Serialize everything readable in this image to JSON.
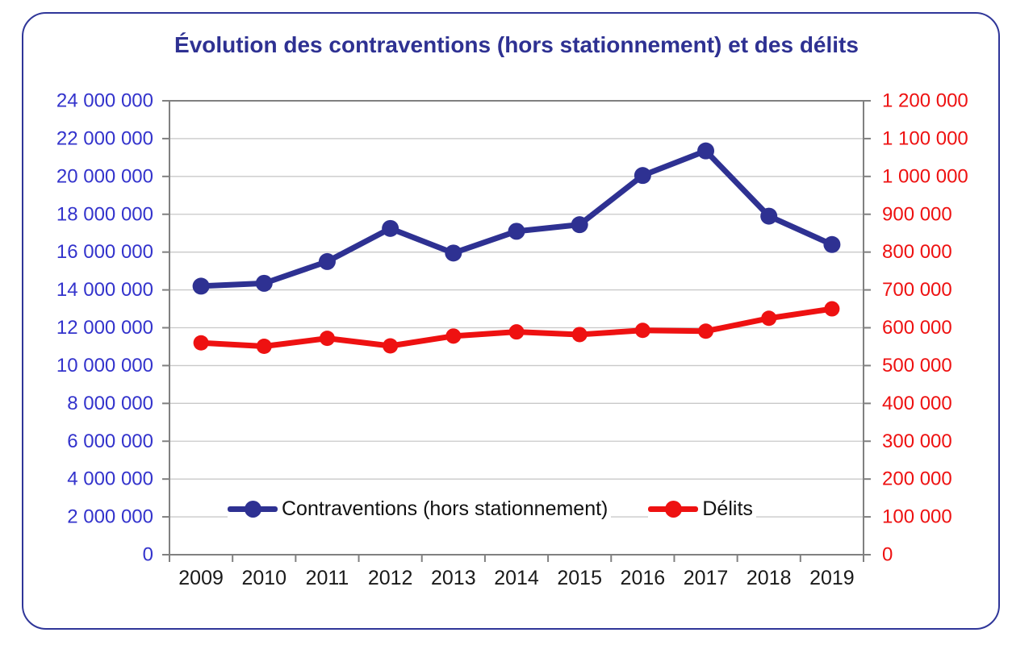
{
  "title": {
    "text": "Évolution des contraventions (hors stationnement) et des délits",
    "color": "#2E3192"
  },
  "colors": {
    "frame_border": "#2F3699",
    "plot_border": "#808080",
    "gridline": "#C9C9C9",
    "contraventions_blue": "#2E3192",
    "delits_red": "#EE1111",
    "left_axis_labels": "#3333CC",
    "right_axis_labels": "#EE1111",
    "x_axis_labels": "#1A1A1A"
  },
  "legend": {
    "items": [
      {
        "label": "Contraventions (hors stationnement)",
        "color": "#2E3192",
        "marker": "line-dot"
      },
      {
        "label": "Délits",
        "color": "#EE1111",
        "marker": "line-dot"
      }
    ],
    "position": "bottom-inside"
  },
  "chart_data": {
    "type": "line",
    "title": "Évolution des contraventions (hors stationnement) et des délits",
    "categories": [
      "2009",
      "2010",
      "2011",
      "2012",
      "2013",
      "2014",
      "2015",
      "2016",
      "2017",
      "2018",
      "2019"
    ],
    "series": [
      {
        "name": "Contraventions (hors stationnement)",
        "axis": "left",
        "color": "#2E3192",
        "values": [
          14200000,
          14350000,
          15500000,
          17250000,
          15950000,
          17100000,
          17450000,
          20050000,
          21350000,
          17900000,
          16400000
        ]
      },
      {
        "name": "Délits",
        "axis": "right",
        "color": "#EE1111",
        "values": [
          560000,
          551000,
          572000,
          552000,
          578000,
          589000,
          582000,
          593000,
          591000,
          625000,
          650000
        ]
      }
    ],
    "left_axis": {
      "min": 0,
      "max": 24000000,
      "step": 2000000,
      "color": "#3333CC",
      "tick_labels": [
        "0",
        "2 000 000",
        "4 000 000",
        "6 000 000",
        "8 000 000",
        "10 000 000",
        "12 000 000",
        "14 000 000",
        "16 000 000",
        "18 000 000",
        "20 000 000",
        "22 000 000",
        "24 000 000"
      ]
    },
    "right_axis": {
      "min": 0,
      "max": 1200000,
      "step": 100000,
      "color": "#EE1111",
      "tick_labels": [
        "0",
        "100 000",
        "200 000",
        "300 000",
        "400 000",
        "500 000",
        "600 000",
        "700 000",
        "800 000",
        "900 000",
        "1 000 000",
        "1 100 000",
        "1 200 000"
      ]
    },
    "grid": true,
    "legend_position": "bottom-inside"
  }
}
